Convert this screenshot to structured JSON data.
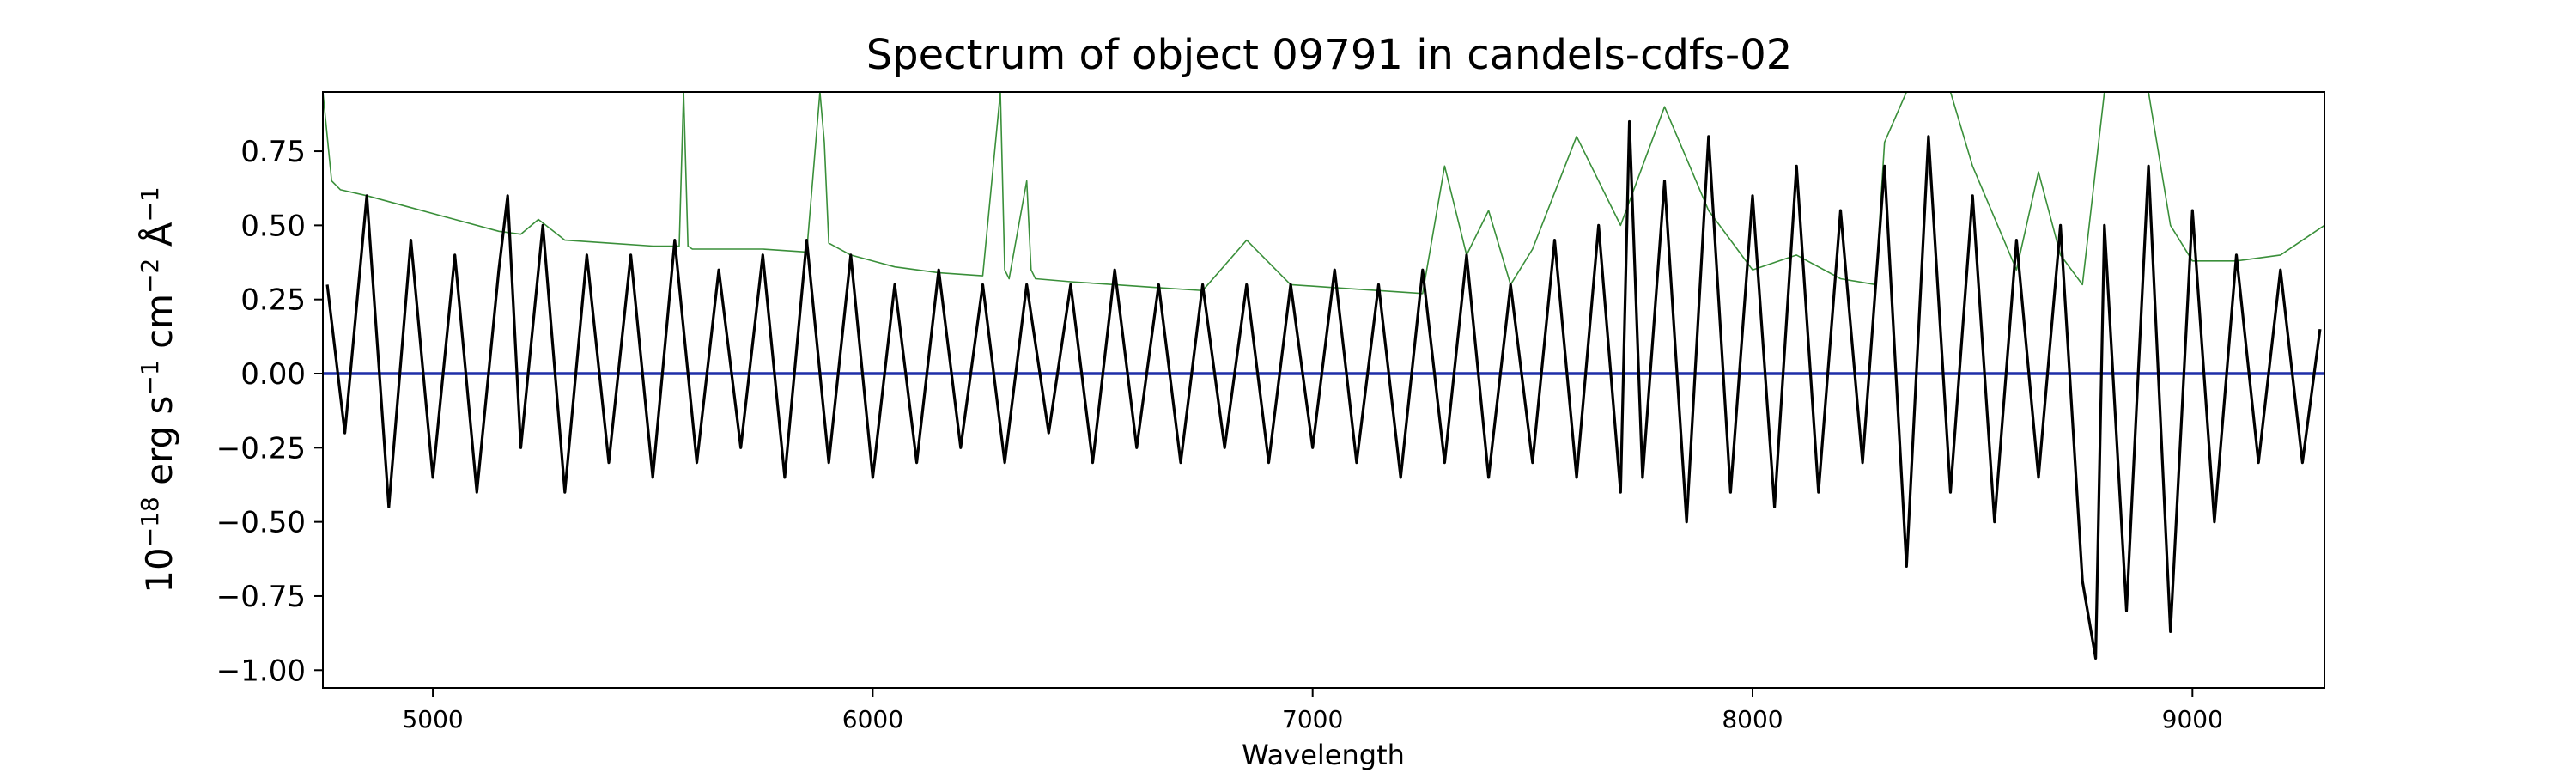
{
  "chart_data": {
    "type": "line",
    "title": "Spectrum of object 09791 in candels-cdfs-02",
    "xlabel": "Wavelength",
    "ylabel": {
      "base": "10",
      "exp1": "−18",
      "unit_erg": " erg s",
      "exp2": "−1",
      "unit_cm": " cm",
      "exp3": "−2",
      "unit_ang": " Å",
      "exp4": "−1"
    },
    "xlim": [
      4750,
      9300
    ],
    "ylim": [
      -1.06,
      0.95
    ],
    "xticks": [
      5000,
      6000,
      7000,
      8000,
      9000
    ],
    "xtick_labels": [
      "5000",
      "6000",
      "7000",
      "8000",
      "9000"
    ],
    "yticks": [
      -1.0,
      -0.75,
      -0.5,
      -0.25,
      0.0,
      0.25,
      0.5,
      0.75
    ],
    "ytick_labels": [
      "−1.00",
      "−0.75",
      "−0.50",
      "−0.25",
      "0.00",
      "0.25",
      "0.50",
      "0.75"
    ],
    "grid": false,
    "series": [
      {
        "role": "noise",
        "color": "#3a8f3a",
        "x": [
          4750,
          4770,
          4790,
          4850,
          4950,
          5050,
          5150,
          5200,
          5240,
          5300,
          5400,
          5500,
          5560,
          5570,
          5580,
          5590,
          5650,
          5750,
          5850,
          5880,
          5890,
          5900,
          5950,
          6050,
          6150,
          6250,
          6290,
          6300,
          6310,
          6350,
          6360,
          6370,
          6450,
          6550,
          6650,
          6750,
          6850,
          6950,
          7050,
          7150,
          7250,
          7300,
          7350,
          7400,
          7450,
          7500,
          7600,
          7700,
          7800,
          7900,
          8000,
          8100,
          8200,
          8280,
          8300,
          8350,
          8400,
          8450,
          8500,
          8600,
          8650,
          8700,
          8750,
          8800,
          8850,
          8900,
          8950,
          9000,
          9100,
          9200,
          9300
        ],
        "y": [
          0.95,
          0.65,
          0.62,
          0.6,
          0.56,
          0.52,
          0.48,
          0.47,
          0.52,
          0.45,
          0.44,
          0.43,
          0.43,
          0.95,
          0.43,
          0.42,
          0.42,
          0.42,
          0.41,
          0.95,
          0.78,
          0.44,
          0.4,
          0.36,
          0.34,
          0.33,
          0.95,
          0.35,
          0.32,
          0.65,
          0.35,
          0.32,
          0.31,
          0.3,
          0.29,
          0.28,
          0.45,
          0.3,
          0.29,
          0.28,
          0.27,
          0.7,
          0.4,
          0.55,
          0.3,
          0.42,
          0.8,
          0.5,
          0.9,
          0.55,
          0.35,
          0.4,
          0.32,
          0.3,
          0.78,
          0.95,
          0.95,
          0.95,
          0.7,
          0.35,
          0.68,
          0.4,
          0.3,
          0.95,
          0.95,
          0.95,
          0.5,
          0.38,
          0.38,
          0.4,
          0.5
        ]
      },
      {
        "role": "model",
        "color": "#1f2fa8",
        "x": [
          4750,
          9300
        ],
        "y": [
          0.0,
          0.0
        ]
      },
      {
        "role": "flux",
        "color": "#000000",
        "x": [
          4760,
          4800,
          4850,
          4900,
          4950,
          5000,
          5050,
          5100,
          5150,
          5170,
          5200,
          5250,
          5300,
          5350,
          5400,
          5450,
          5500,
          5550,
          5600,
          5650,
          5700,
          5750,
          5800,
          5850,
          5900,
          5950,
          6000,
          6050,
          6100,
          6150,
          6200,
          6250,
          6300,
          6350,
          6400,
          6450,
          6500,
          6550,
          6600,
          6650,
          6700,
          6750,
          6800,
          6850,
          6900,
          6950,
          7000,
          7050,
          7100,
          7150,
          7200,
          7250,
          7300,
          7350,
          7400,
          7450,
          7500,
          7550,
          7600,
          7650,
          7700,
          7720,
          7750,
          7800,
          7850,
          7900,
          7950,
          8000,
          8050,
          8100,
          8150,
          8200,
          8250,
          8300,
          8350,
          8400,
          8450,
          8500,
          8550,
          8600,
          8650,
          8700,
          8750,
          8780,
          8800,
          8850,
          8900,
          8950,
          9000,
          9050,
          9100,
          9150,
          9200,
          9250,
          9290
        ],
        "y": [
          0.3,
          -0.2,
          0.6,
          -0.45,
          0.45,
          -0.35,
          0.4,
          -0.4,
          0.35,
          0.6,
          -0.25,
          0.5,
          -0.4,
          0.4,
          -0.3,
          0.4,
          -0.35,
          0.45,
          -0.3,
          0.35,
          -0.25,
          0.4,
          -0.35,
          0.45,
          -0.3,
          0.4,
          -0.35,
          0.3,
          -0.3,
          0.35,
          -0.25,
          0.3,
          -0.3,
          0.3,
          -0.2,
          0.3,
          -0.3,
          0.35,
          -0.25,
          0.3,
          -0.3,
          0.3,
          -0.25,
          0.3,
          -0.3,
          0.3,
          -0.25,
          0.35,
          -0.3,
          0.3,
          -0.35,
          0.35,
          -0.3,
          0.4,
          -0.35,
          0.3,
          -0.3,
          0.45,
          -0.35,
          0.5,
          -0.4,
          0.85,
          -0.35,
          0.65,
          -0.5,
          0.8,
          -0.4,
          0.6,
          -0.45,
          0.7,
          -0.4,
          0.55,
          -0.3,
          0.7,
          -0.65,
          0.8,
          -0.4,
          0.6,
          -0.5,
          0.45,
          -0.35,
          0.5,
          -0.7,
          -0.96,
          0.5,
          -0.8,
          0.7,
          -0.87,
          0.55,
          -0.5,
          0.4,
          -0.3,
          0.35,
          -0.3,
          0.15
        ]
      }
    ]
  }
}
